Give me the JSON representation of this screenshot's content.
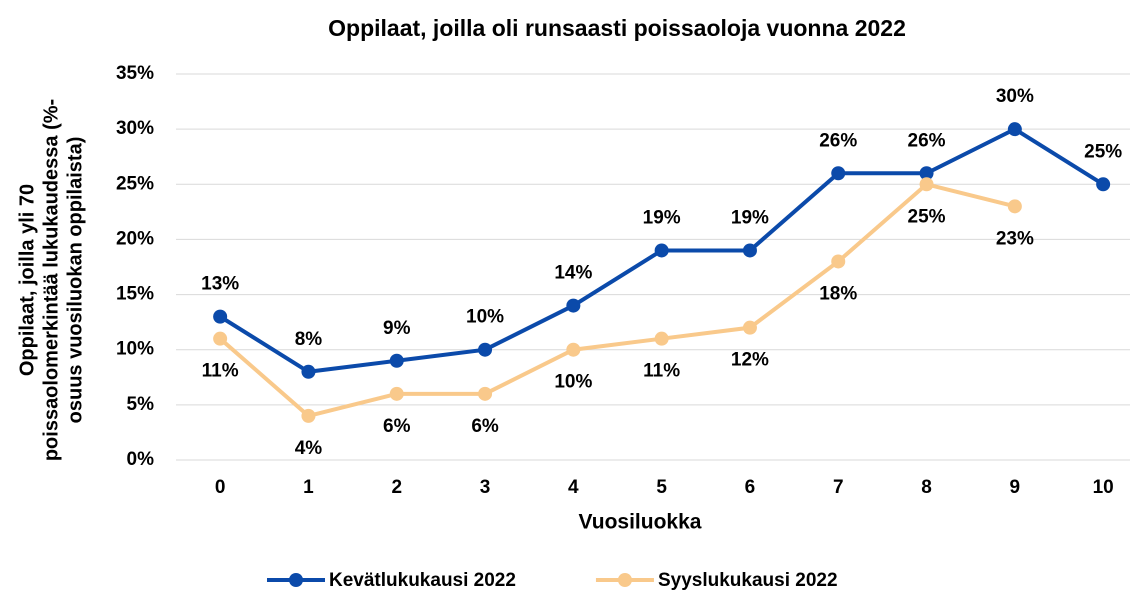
{
  "chart_data": {
    "type": "line",
    "title": "Oppilaat, joilla oli runsaasti poissaoloja vuonna 2022",
    "xlabel": "Vuosiluokka",
    "ylabel": [
      "Oppilaat, joilla yli 70",
      "poissaolomerkintää lukukaudessa (%-",
      "osuus vuosiluokan oppilaista)"
    ],
    "categories": [
      "0",
      "1",
      "2",
      "3",
      "4",
      "5",
      "6",
      "7",
      "8",
      "9",
      "10"
    ],
    "series": [
      {
        "name": "Kevätlukukausi 2022",
        "color": "#0b4aaa",
        "values": [
          13,
          8,
          9,
          10,
          14,
          19,
          19,
          26,
          26,
          30,
          25
        ],
        "value_labels": [
          "13%",
          "8%",
          "9%",
          "10%",
          "14%",
          "19%",
          "19%",
          "26%",
          "26%",
          "30%",
          "25%"
        ]
      },
      {
        "name": "Syyslukukausi 2022",
        "color": "#f9c98b",
        "values": [
          11,
          4,
          6,
          6,
          10,
          11,
          12,
          18,
          25,
          23,
          null
        ],
        "value_labels": [
          "11%",
          "4%",
          "6%",
          "6%",
          "10%",
          "11%",
          "12%",
          "18%",
          "25%",
          "23%",
          null
        ]
      }
    ],
    "ylim": [
      0,
      35
    ],
    "yticks": [
      {
        "value": 0,
        "label": "0%"
      },
      {
        "value": 5,
        "label": "5%"
      },
      {
        "value": 10,
        "label": "10%"
      },
      {
        "value": 15,
        "label": "15%"
      },
      {
        "value": 20,
        "label": "20%"
      },
      {
        "value": 25,
        "label": "25%"
      },
      {
        "value": 30,
        "label": "30%"
      },
      {
        "value": 35,
        "label": "35%"
      }
    ],
    "grid": true,
    "legend": "bottom"
  }
}
